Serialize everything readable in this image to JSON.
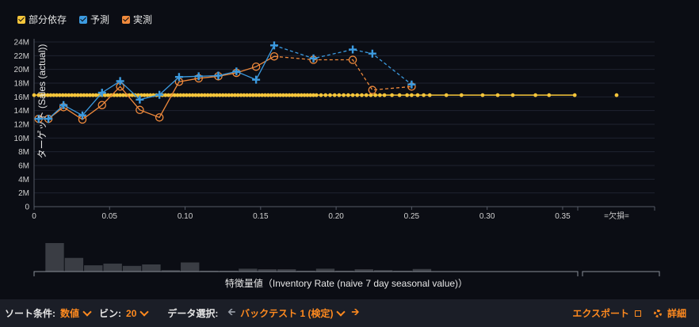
{
  "legend": {
    "items": [
      {
        "label": "部分依存",
        "color": "#f5c53a"
      },
      {
        "label": "予測",
        "color": "#3c9be0"
      },
      {
        "label": "実測",
        "color": "#f08a3c"
      }
    ]
  },
  "chart_data": {
    "type": "line",
    "ylabel": "ターゲット (Sales (actual))",
    "xlabel": "特徴量値（Inventory Rate (naive 7 day seasonal value)）",
    "x_ticks": [
      "0",
      "0.05",
      "0.10",
      "0.15",
      "0.20",
      "0.25",
      "0.30",
      "0.35"
    ],
    "x_tick_values": [
      0,
      0.05,
      0.1,
      0.15,
      0.2,
      0.25,
      0.3,
      0.35
    ],
    "missing_label": "=欠損=",
    "xlim": [
      0,
      0.36
    ],
    "y_ticks": [
      "0",
      "2M",
      "4M",
      "6M",
      "8M",
      "10M",
      "12M",
      "14M",
      "16M",
      "18M",
      "20M",
      "22M",
      "24M"
    ],
    "y_tick_values": [
      0,
      2,
      4,
      6,
      8,
      10,
      12,
      14,
      16,
      18,
      20,
      22,
      24
    ],
    "ylim": [
      0,
      24
    ],
    "series": [
      {
        "name": "予測",
        "color": "#3c9be0",
        "solid": [
          [
            0.003,
            12.8
          ],
          [
            0.0095,
            12.8
          ],
          [
            0.0195,
            14.8
          ],
          [
            0.032,
            13.3
          ],
          [
            0.045,
            16.6
          ],
          [
            0.057,
            18.3
          ],
          [
            0.07,
            15.6
          ],
          [
            0.083,
            16.3
          ],
          [
            0.096,
            18.9
          ],
          [
            0.109,
            19.0
          ],
          [
            0.122,
            19.1
          ],
          [
            0.134,
            19.7
          ],
          [
            0.147,
            18.5
          ],
          [
            0.159,
            23.5
          ]
        ],
        "dashed": [
          [
            0.159,
            23.5
          ],
          [
            0.185,
            21.6
          ],
          [
            0.211,
            22.9
          ],
          [
            0.224,
            22.3
          ],
          [
            0.25,
            17.8
          ]
        ]
      },
      {
        "name": "実測",
        "color": "#f08a3c",
        "solid": [
          [
            0.003,
            12.8
          ],
          [
            0.0095,
            12.8
          ],
          [
            0.0195,
            14.5
          ],
          [
            0.032,
            12.7
          ],
          [
            0.045,
            14.8
          ],
          [
            0.057,
            17.5
          ],
          [
            0.07,
            14.1
          ],
          [
            0.083,
            13.0
          ],
          [
            0.096,
            18.2
          ],
          [
            0.109,
            18.7
          ],
          [
            0.122,
            19.0
          ],
          [
            0.134,
            19.5
          ],
          [
            0.147,
            20.4
          ],
          [
            0.159,
            21.9
          ]
        ],
        "dashed": [
          [
            0.159,
            21.9
          ],
          [
            0.185,
            21.4
          ],
          [
            0.211,
            21.4
          ],
          [
            0.224,
            17.0
          ],
          [
            0.25,
            17.5
          ]
        ]
      },
      {
        "name": "部分依存",
        "color": "#f5c53a",
        "y": 16.25,
        "x": [
          0,
          0.003,
          0.005,
          0.007,
          0.009,
          0.011,
          0.013,
          0.015,
          0.017,
          0.019,
          0.021,
          0.023,
          0.025,
          0.027,
          0.029,
          0.031,
          0.033,
          0.035,
          0.037,
          0.039,
          0.041,
          0.043,
          0.045,
          0.047,
          0.049,
          0.051,
          0.053,
          0.055,
          0.057,
          0.059,
          0.061,
          0.063,
          0.065,
          0.067,
          0.069,
          0.071,
          0.073,
          0.075,
          0.077,
          0.079,
          0.081,
          0.083,
          0.085,
          0.087,
          0.089,
          0.091,
          0.093,
          0.095,
          0.097,
          0.099,
          0.101,
          0.103,
          0.105,
          0.107,
          0.109,
          0.111,
          0.113,
          0.115,
          0.117,
          0.119,
          0.121,
          0.123,
          0.125,
          0.127,
          0.129,
          0.131,
          0.133,
          0.135,
          0.137,
          0.139,
          0.141,
          0.143,
          0.145,
          0.147,
          0.149,
          0.151,
          0.153,
          0.155,
          0.157,
          0.159,
          0.161,
          0.163,
          0.165,
          0.167,
          0.169,
          0.171,
          0.173,
          0.175,
          0.177,
          0.179,
          0.181,
          0.183,
          0.185,
          0.187,
          0.19,
          0.193,
          0.196,
          0.199,
          0.202,
          0.205,
          0.208,
          0.211,
          0.214,
          0.217,
          0.22,
          0.223,
          0.226,
          0.229,
          0.232,
          0.237,
          0.242,
          0.247,
          0.25,
          0.254,
          0.258,
          0.262,
          0.273,
          0.283,
          0.297,
          0.307,
          0.317,
          0.332,
          0.341,
          0.358
        ],
        "missing_y": 16.25
      }
    ],
    "histogram": {
      "bin_width": 0.0128,
      "heights": [
        1.0,
        0.48,
        0.22,
        0.28,
        0.2,
        0.25,
        0.05,
        0.32,
        0.03,
        0.03,
        0.1,
        0.08,
        0.08,
        0.03,
        0.1,
        0.03,
        0.08,
        0.05,
        0.03,
        0.09
      ]
    }
  },
  "toolbar": {
    "sort_label": "ソート条件:",
    "sort_value": "数値",
    "bins_label": "ビン:",
    "bins_value": "20",
    "data_label": "データ選択:",
    "data_value": "バックテスト 1 (検定)",
    "export_label": "エクスポート",
    "details_label": "詳細"
  }
}
